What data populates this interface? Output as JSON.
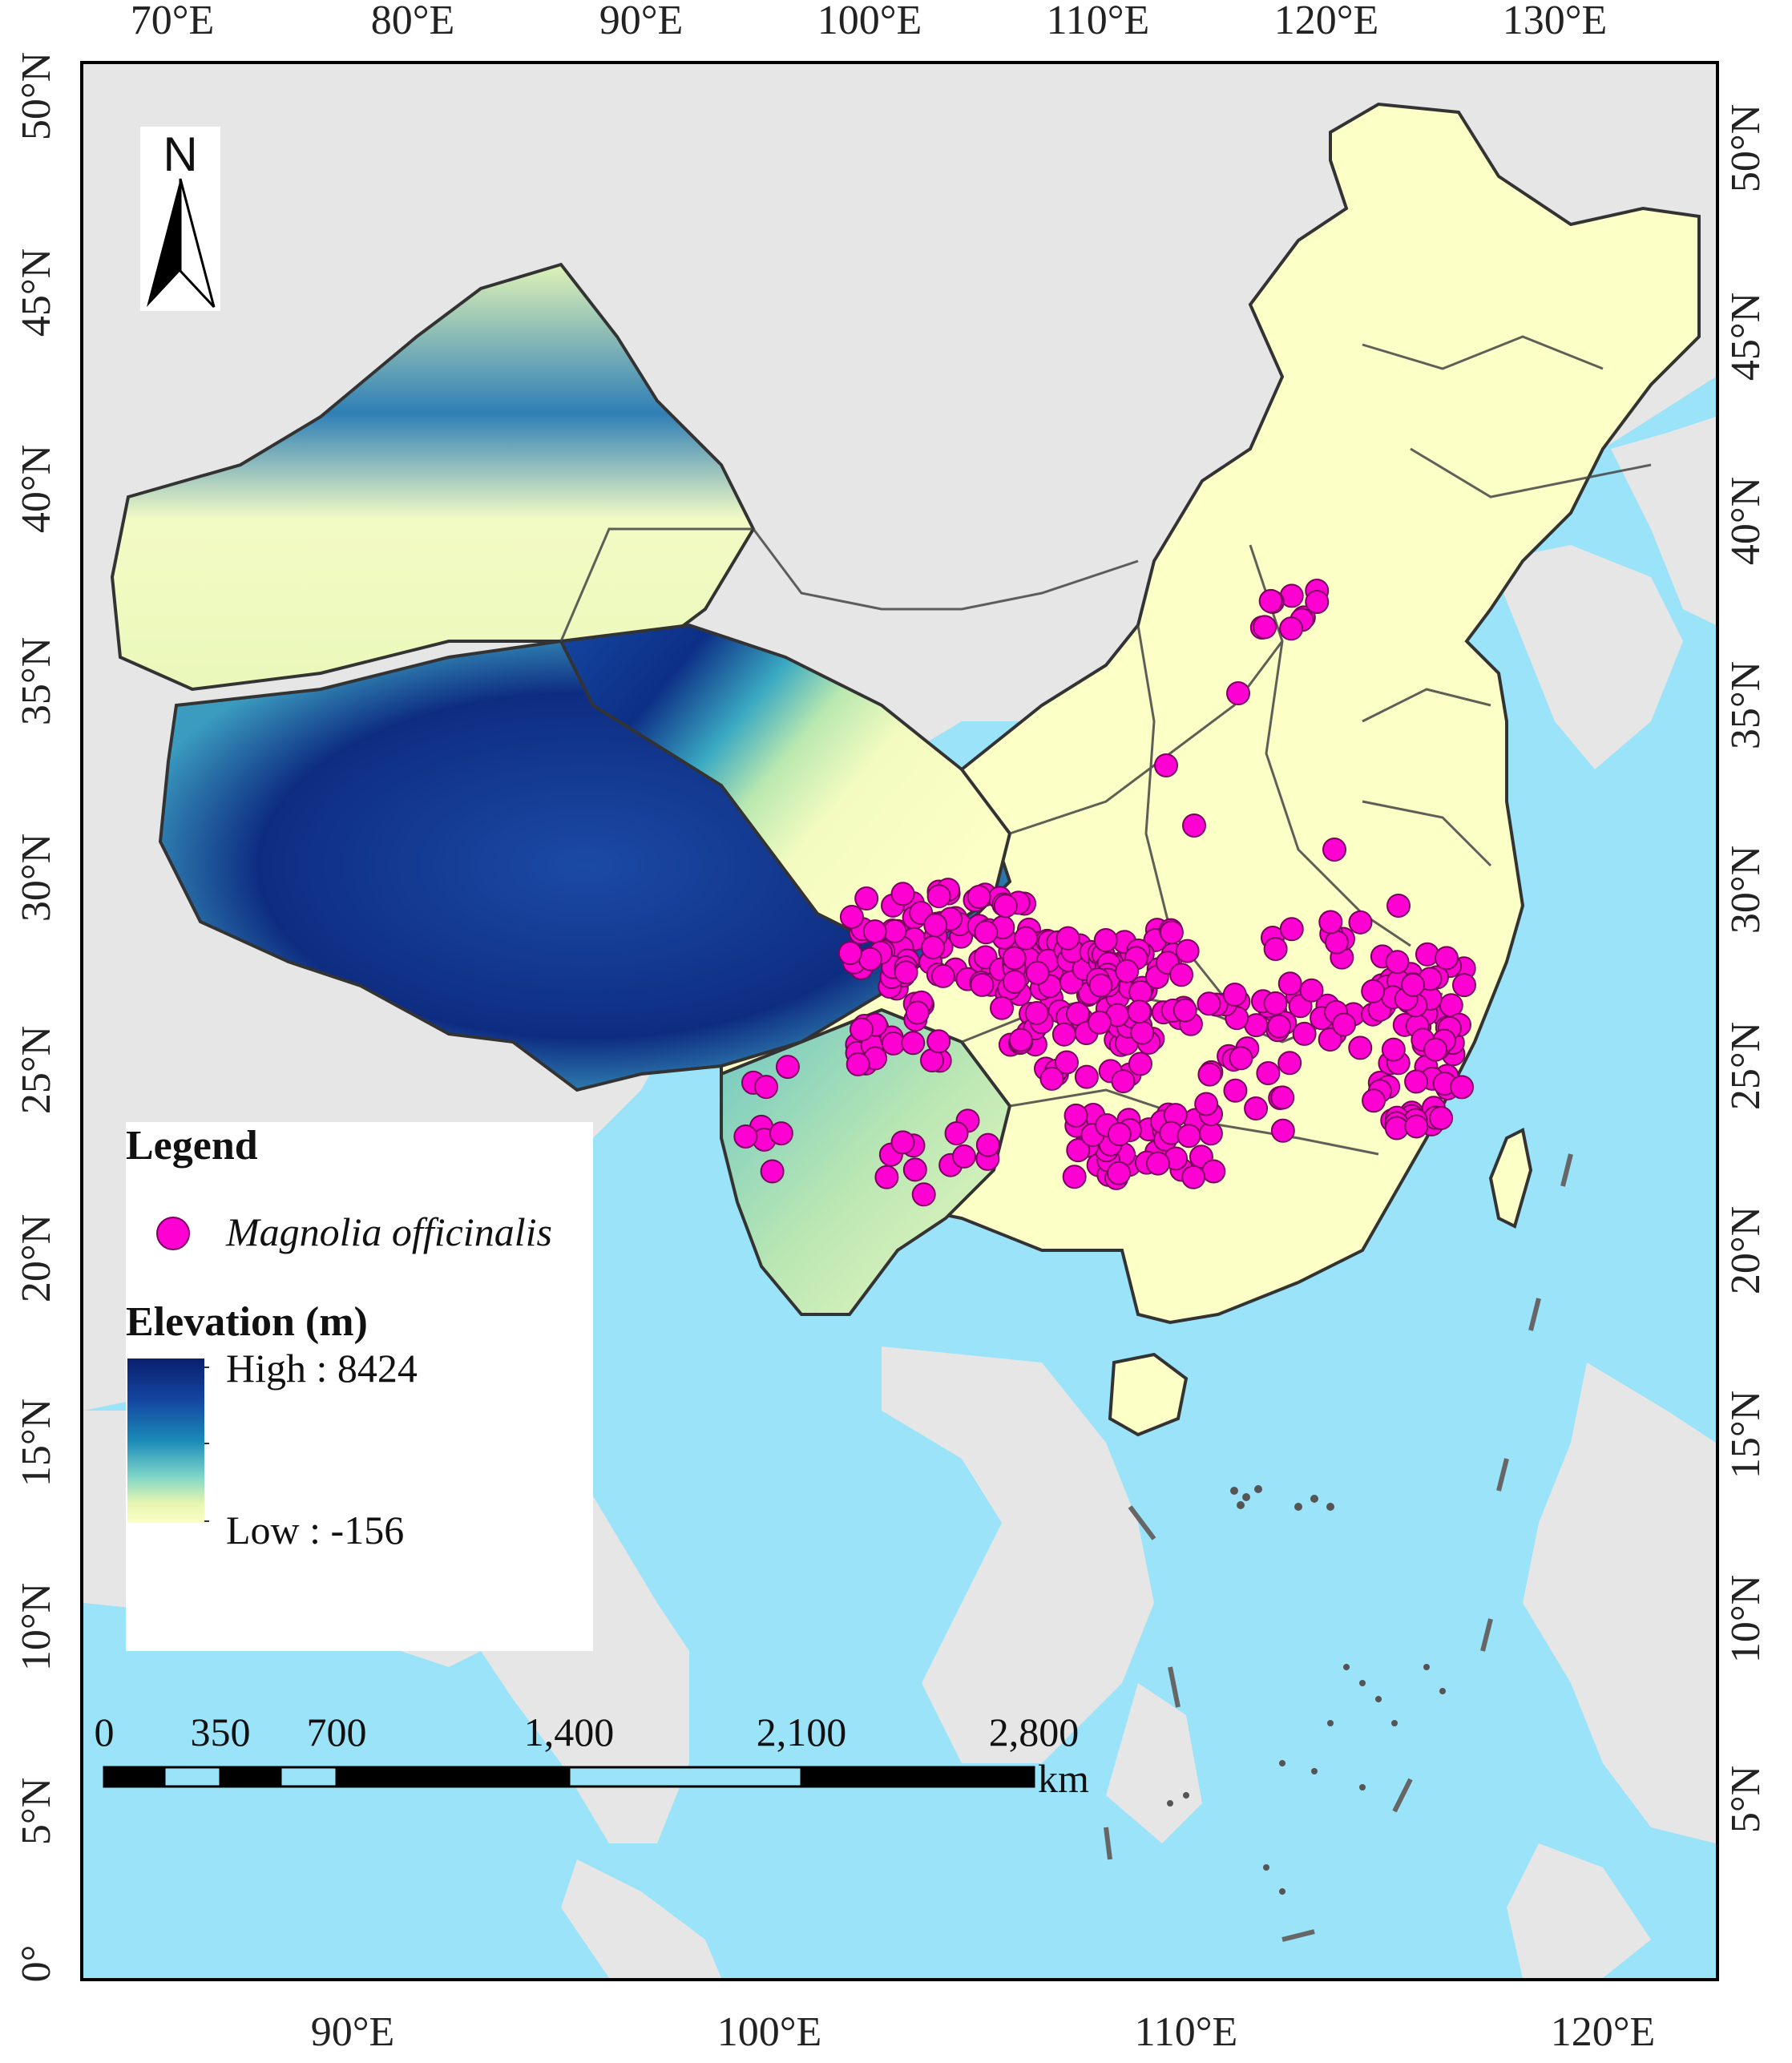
{
  "map": {
    "top_lon_labels": [
      "70°E",
      "80°E",
      "90°E",
      "100°E",
      "110°E",
      "120°E",
      "130°E"
    ],
    "bottom_lon_labels": [
      "90°E",
      "100°E",
      "110°E",
      "120°E"
    ],
    "left_lat_labels": [
      "50°N",
      "45°N",
      "40°N",
      "35°N",
      "30°N",
      "25°N",
      "20°N",
      "15°N",
      "10°N",
      "5°N",
      "0°"
    ],
    "right_lat_labels": [
      "50°N",
      "45°N",
      "40°N",
      "35°N",
      "30°N",
      "25°N",
      "20°N",
      "15°N",
      "10°N",
      "5°N"
    ],
    "colors": {
      "sea": "#9be3f9",
      "neighbor_land": "#e6e6e6",
      "lowland": "#fcffc6",
      "highland": "#0a1f6e",
      "boundary": "#444444",
      "point_fill": "#ff00d2",
      "point_stroke": "#7a0060"
    }
  },
  "north_arrow": {
    "label": "N",
    "icon": "north-arrow-icon"
  },
  "legend": {
    "title": "Legend",
    "point_label": "Magnolia officinalis",
    "elevation_title": "Elevation (m)",
    "high_label": "High : 8424",
    "low_label": "Low : -156"
  },
  "scale_bar": {
    "labels": [
      "0",
      "350",
      "700",
      "1,400",
      "2,100",
      "2,800"
    ],
    "unit": "km"
  }
}
